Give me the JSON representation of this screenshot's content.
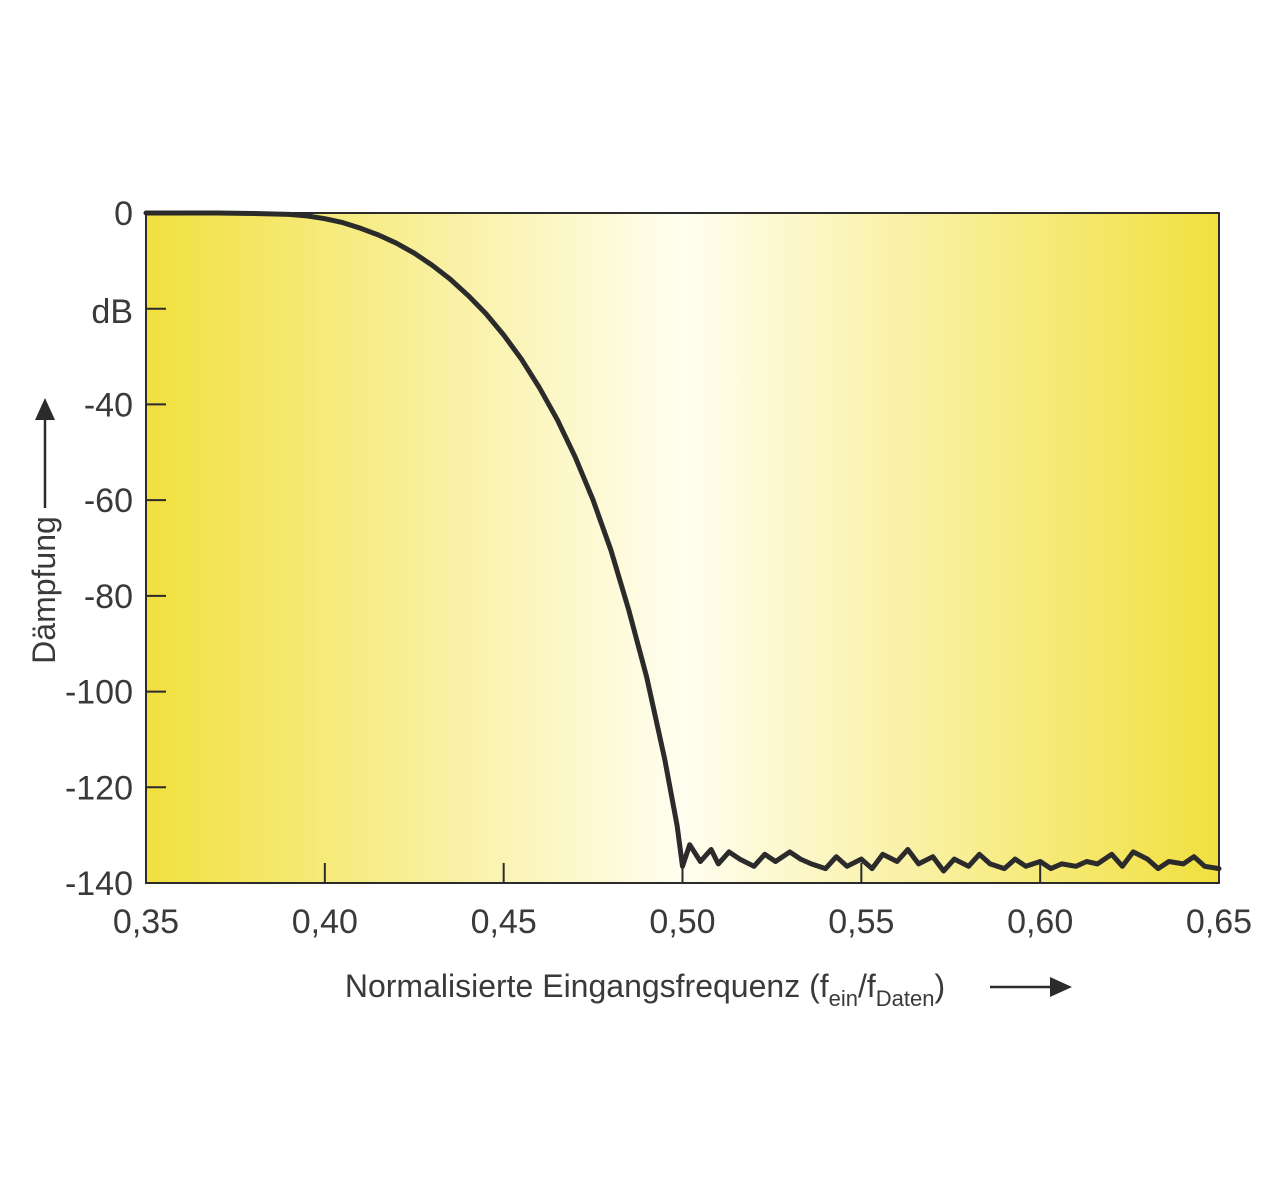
{
  "chart_data": {
    "type": "line",
    "xlabel": {
      "main": "Normalisierte Eingangsfrequenz (f",
      "sub1": "ein",
      "mid": "/f",
      "sub2": "Daten",
      "end": ")"
    },
    "ylabel": "Dämpfung",
    "y_unit": "dB",
    "xlim": [
      0.35,
      0.65
    ],
    "ylim": [
      -140,
      0
    ],
    "x_ticks": [
      {
        "value": 0.35,
        "label": "0,35"
      },
      {
        "value": 0.4,
        "label": "0,40"
      },
      {
        "value": 0.45,
        "label": "0,45"
      },
      {
        "value": 0.5,
        "label": "0,50"
      },
      {
        "value": 0.55,
        "label": "0,55"
      },
      {
        "value": 0.6,
        "label": "0,60"
      },
      {
        "value": 0.65,
        "label": "0,65"
      }
    ],
    "y_ticks": [
      {
        "value": 0,
        "label": "0"
      },
      {
        "value": -40,
        "label": "-40"
      },
      {
        "value": -60,
        "label": "-60"
      },
      {
        "value": -80,
        "label": "-80"
      },
      {
        "value": -100,
        "label": "-100"
      },
      {
        "value": -120,
        "label": "-120"
      },
      {
        "value": -140,
        "label": "-140"
      }
    ],
    "grid": false,
    "background": {
      "edge": "#f1e03f",
      "center": "#fffef0"
    },
    "line_color": "#2b2b2b",
    "series": [
      {
        "x": [
          0.35,
          0.37,
          0.38,
          0.39,
          0.395,
          0.4,
          0.405,
          0.41,
          0.415,
          0.42,
          0.425,
          0.43,
          0.435,
          0.44,
          0.445,
          0.45,
          0.455,
          0.46,
          0.465,
          0.47,
          0.475,
          0.48,
          0.485,
          0.49,
          0.495,
          0.4985,
          0.5,
          0.502,
          0.505,
          0.508,
          0.51,
          0.513,
          0.516,
          0.52,
          0.523,
          0.526,
          0.53,
          0.533,
          0.536,
          0.54,
          0.543,
          0.546,
          0.55,
          0.553,
          0.556,
          0.56,
          0.563,
          0.566,
          0.57,
          0.573,
          0.576,
          0.58,
          0.583,
          0.586,
          0.59,
          0.593,
          0.596,
          0.6,
          0.603,
          0.606,
          0.61,
          0.613,
          0.616,
          0.62,
          0.623,
          0.626,
          0.63,
          0.633,
          0.636,
          0.64,
          0.643,
          0.646,
          0.65
        ],
        "y": [
          0,
          0,
          -0.1,
          -0.3,
          -0.6,
          -1.2,
          -2.0,
          -3.2,
          -4.6,
          -6.3,
          -8.4,
          -10.9,
          -13.8,
          -17.2,
          -21.0,
          -25.5,
          -30.6,
          -36.5,
          -43.2,
          -51.0,
          -60.0,
          -70.5,
          -83.0,
          -97.0,
          -114.0,
          -128.0,
          -136.5,
          -132.0,
          -135.5,
          -133.0,
          -136.0,
          -133.5,
          -135.0,
          -136.5,
          -134.0,
          -135.5,
          -133.5,
          -135.0,
          -136.0,
          -137.0,
          -134.5,
          -136.5,
          -135.0,
          -137.0,
          -134.0,
          -135.5,
          -133.0,
          -136.0,
          -134.5,
          -137.5,
          -135.0,
          -136.5,
          -134.0,
          -136.0,
          -137.0,
          -135.0,
          -136.5,
          -135.5,
          -137.0,
          -136.0,
          -136.5,
          -135.5,
          -136.0,
          -134.0,
          -136.5,
          -133.5,
          -135.0,
          -137.0,
          -135.5,
          -136.0,
          -134.5,
          -136.5,
          -137.0
        ]
      }
    ]
  }
}
